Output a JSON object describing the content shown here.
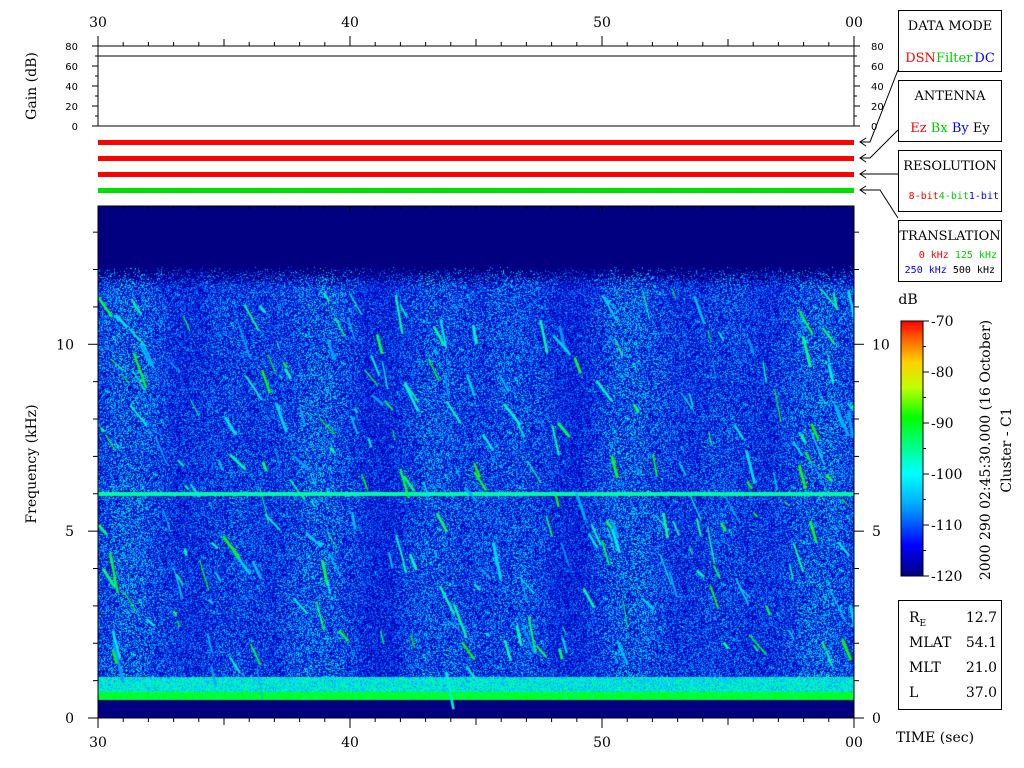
{
  "chart_data": {
    "type": "heatmap",
    "title": "",
    "x_axis": {
      "label": "TIME (sec)",
      "ticks": [
        "30",
        "40",
        "50",
        "00"
      ],
      "range": [
        30,
        60
      ]
    },
    "y_axis": {
      "label": "Frequency (kHz)",
      "ticks": [
        "0",
        "5",
        "10"
      ],
      "range": [
        0,
        13.7
      ]
    },
    "gain_axis": {
      "label": "Gain (dB)",
      "ticks": [
        "0",
        "20",
        "40",
        "60",
        "80"
      ],
      "range": [
        0,
        80
      ],
      "value": 70
    },
    "colorbar": {
      "label": "dB",
      "ticks": [
        "-70",
        "-80",
        "-90",
        "-100",
        "-110",
        "-120"
      ],
      "range": [
        -120,
        -70
      ]
    },
    "features": {
      "noise_floor_db": -120,
      "upper_cutoff_khz": 11.5,
      "interference_line_khz": 6.0,
      "low_band_khz": [
        0.5,
        1.1
      ]
    },
    "timestamp": "2000 290 02:45:30.000 (16 October)",
    "spacecraft": "Cluster - C1",
    "mode_bars": [
      {
        "color": "#ff0000"
      },
      {
        "color": "#ff0000"
      },
      {
        "color": "#ff0000"
      },
      {
        "color": "#00e000"
      }
    ]
  },
  "legend": {
    "data_mode": {
      "title": "DATA MODE",
      "items": [
        {
          "text": "DSN",
          "color": "#ff0000"
        },
        {
          "text": "Filter",
          "color": "#00cc00"
        },
        {
          "text": "DC",
          "color": "#0000ff"
        }
      ]
    },
    "antenna": {
      "title": "ANTENNA",
      "items": [
        {
          "text": "Ez",
          "color": "#ff0000"
        },
        {
          "text": "Bx",
          "color": "#00cc00"
        },
        {
          "text": "By",
          "color": "#0000ff"
        },
        {
          "text": "Ey",
          "color": "#000000"
        }
      ]
    },
    "resolution": {
      "title": "RESOLUTION",
      "items": [
        {
          "text": "8-bit",
          "color": "#ff0000"
        },
        {
          "text": "4-bit",
          "color": "#00cc00"
        },
        {
          "text": "1-bit",
          "color": "#0000ff"
        }
      ]
    },
    "translation": {
      "title": "TRANSLATION",
      "row1": [
        {
          "text": "0 kHz",
          "color": "#ff0000"
        },
        {
          "text": "125 kHz",
          "color": "#00cc00"
        }
      ],
      "row2": [
        {
          "text": "250 kHz",
          "color": "#0000ff"
        },
        {
          "text": "500 kHz",
          "color": "#000000"
        }
      ]
    }
  },
  "orbit": {
    "re_label": "R",
    "re_sub": "E",
    "re_value": "12.7",
    "mlat_label": "MLAT",
    "mlat_value": "54.1",
    "mlt_label": "MLT",
    "mlt_value": "21.0",
    "l_label": "L",
    "l_value": "37.0"
  }
}
